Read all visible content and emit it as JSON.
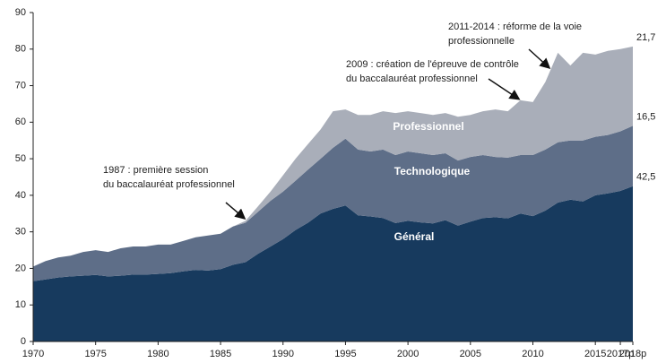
{
  "chart_data": {
    "type": "stacked_area",
    "x": [
      1970,
      1971,
      1972,
      1973,
      1974,
      1975,
      1976,
      1977,
      1978,
      1979,
      1980,
      1981,
      1982,
      1983,
      1984,
      1985,
      1986,
      1987,
      1988,
      1989,
      1990,
      1991,
      1992,
      1993,
      1994,
      1995,
      1996,
      1997,
      1998,
      1999,
      2000,
      2001,
      2002,
      2003,
      2004,
      2005,
      2006,
      2007,
      2008,
      2009,
      2010,
      2011,
      2012,
      2013,
      2014,
      2015,
      2016,
      2017,
      2018
    ],
    "series": [
      {
        "name": "Général",
        "color": "#173a5e",
        "values": [
          16.5,
          17,
          17.5,
          17.8,
          18,
          18.2,
          17.8,
          18,
          18.3,
          18.3,
          18.5,
          18.7,
          19.2,
          19.6,
          19.4,
          19.8,
          21,
          21.7,
          24,
          26,
          28,
          30.5,
          32.5,
          35,
          36.3,
          37.2,
          34.5,
          34.2,
          33.8,
          32.4,
          33,
          32.6,
          32.3,
          33.2,
          31.7,
          32.8,
          33.8,
          34,
          33.7,
          35,
          34.3,
          35.8,
          38,
          38.8,
          38.3,
          40,
          40.5,
          41.2,
          42.5
        ],
        "value_labels": [
          null,
          null,
          null,
          null,
          null,
          null,
          null,
          null,
          null,
          null,
          null,
          null,
          null,
          null,
          null,
          null,
          null,
          null,
          null,
          null,
          null,
          null,
          null,
          null,
          null,
          null,
          null,
          null,
          null,
          null,
          null,
          null,
          null,
          null,
          null,
          null,
          null,
          null,
          null,
          null,
          null,
          null,
          null,
          null,
          null,
          null,
          null,
          null,
          "42,5"
        ]
      },
      {
        "name": "Technologique",
        "color": "#5e6e88",
        "values": [
          4,
          5,
          5.5,
          5.7,
          6.5,
          6.8,
          6.7,
          7.5,
          7.7,
          7.7,
          8,
          7.8,
          8.3,
          8.9,
          9.6,
          9.7,
          10.5,
          10.8,
          11.5,
          12.5,
          13,
          13.5,
          14.5,
          15,
          16.7,
          18.3,
          18,
          17.8,
          18.7,
          18.6,
          19,
          18.9,
          18.7,
          18.3,
          17.8,
          17.7,
          17.2,
          16.5,
          16.6,
          16,
          16.7,
          16.7,
          16.5,
          16.2,
          16.7,
          16,
          16,
          16.3,
          16.5
        ],
        "value_labels": [
          null,
          null,
          null,
          null,
          null,
          null,
          null,
          null,
          null,
          null,
          null,
          null,
          null,
          null,
          null,
          null,
          null,
          null,
          null,
          null,
          null,
          null,
          null,
          null,
          null,
          null,
          null,
          null,
          null,
          null,
          null,
          null,
          null,
          null,
          null,
          null,
          null,
          null,
          null,
          null,
          null,
          null,
          null,
          null,
          null,
          null,
          null,
          null,
          "16,5"
        ]
      },
      {
        "name": "Professionnel",
        "color": "#a9aeb9",
        "values": [
          0,
          0,
          0,
          0,
          0,
          0,
          0,
          0,
          0,
          0,
          0,
          0,
          0,
          0,
          0,
          0,
          0,
          0.5,
          1.5,
          2.5,
          4.5,
          6,
          7,
          8,
          10,
          8,
          9.5,
          10,
          10.5,
          11.5,
          11,
          11,
          11,
          11,
          12,
          11.5,
          12,
          13,
          12.7,
          15,
          14.5,
          18.5,
          24.5,
          20.5,
          24,
          22.5,
          23,
          22.5,
          21.7
        ],
        "value_labels": [
          null,
          null,
          null,
          null,
          null,
          null,
          null,
          null,
          null,
          null,
          null,
          null,
          null,
          null,
          null,
          null,
          null,
          null,
          null,
          null,
          null,
          null,
          null,
          null,
          null,
          null,
          null,
          null,
          null,
          null,
          null,
          null,
          null,
          null,
          null,
          null,
          null,
          null,
          null,
          null,
          null,
          null,
          null,
          null,
          null,
          null,
          null,
          null,
          "21,7"
        ]
      }
    ],
    "xlim": [
      1970,
      2018
    ],
    "xticks": [
      1970,
      1975,
      1980,
      1985,
      1990,
      1995,
      2000,
      2005,
      2010,
      2015,
      {
        "value": 2017,
        "label": "2017p"
      },
      {
        "value": 2018,
        "label": "2018p"
      }
    ],
    "ylim": [
      0,
      90
    ],
    "yticks": [
      0,
      10,
      20,
      30,
      40,
      50,
      60,
      70,
      80,
      90
    ],
    "annotations": [
      {
        "lines": [
          "1987 : première session",
          "du baccalauréat professionnel"
        ],
        "x": 1987
      },
      {
        "lines": [
          "2009 : création de l'épreuve  de contrôle",
          "du baccalauréat  professionnel"
        ],
        "x": 2009
      },
      {
        "lines": [
          "2011-2014 : réforme de la voie",
          "professionnelle"
        ],
        "x": 2011
      }
    ]
  }
}
